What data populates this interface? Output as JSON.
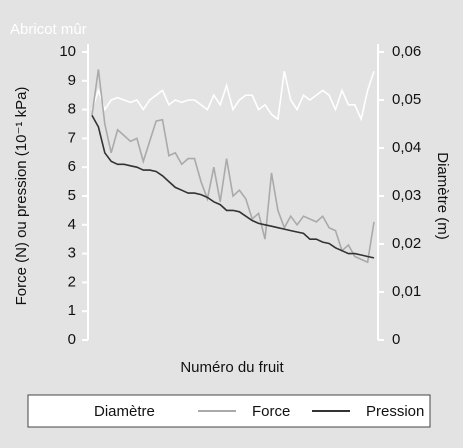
{
  "chart_data": {
    "type": "line",
    "title": "Abricot mûr",
    "xlabel": "Numéro du fruit",
    "ylabel": "Force (N) ou pression (10⁻¹ kPa)",
    "y2label": "Diamètre (m)",
    "ylim": [
      0,
      10
    ],
    "yticks": [
      0,
      1,
      2,
      3,
      4,
      5,
      6,
      7,
      8,
      9,
      10
    ],
    "y2lim": [
      0,
      0.06
    ],
    "y2ticks": [
      0,
      {
        "value": 0.01,
        "label": "0,01"
      },
      {
        "value": 0.02,
        "label": "0,02"
      },
      {
        "value": 0.03,
        "label": "0,03"
      },
      {
        "value": 0.04,
        "label": "0,04"
      },
      {
        "value": 0.05,
        "label": "0,05"
      },
      {
        "value": 0.06,
        "label": "0,06"
      }
    ],
    "legend": "bottom",
    "series": [
      {
        "name": "Diamètre",
        "color": "#ffffff",
        "axis": "y2",
        "values": [
          0.048,
          0.052,
          0.048,
          0.05,
          0.0505,
          0.05,
          0.0495,
          0.05,
          0.048,
          0.05,
          0.051,
          0.052,
          0.049,
          0.05,
          0.0495,
          0.05,
          0.05,
          0.049,
          0.048,
          0.051,
          0.049,
          0.053,
          0.048,
          0.05,
          0.051,
          0.051,
          0.048,
          0.049,
          0.047,
          0.046,
          0.056,
          0.05,
          0.048,
          0.051,
          0.05,
          0.051,
          0.052,
          0.051,
          0.048,
          0.052,
          0.049,
          0.049,
          0.046,
          0.052,
          0.056
        ]
      },
      {
        "name": "Force",
        "color": "#aaaaaa",
        "values": [
          7.8,
          9.4,
          7.5,
          6.5,
          7.3,
          7.1,
          6.9,
          7.0,
          6.2,
          6.9,
          7.6,
          7.65,
          6.4,
          6.5,
          6.1,
          6.3,
          6.3,
          5.5,
          4.9,
          6.0,
          4.8,
          6.3,
          5.0,
          5.2,
          4.9,
          4.2,
          4.4,
          3.5,
          5.8,
          4.5,
          3.9,
          4.3,
          4.0,
          4.3,
          4.2,
          4.1,
          4.3,
          3.9,
          3.8,
          3.1,
          3.3,
          2.9,
          2.8,
          2.7,
          4.1
        ]
      },
      {
        "name": "Pression",
        "color": "#333333",
        "values": [
          7.8,
          7.4,
          6.5,
          6.2,
          6.1,
          6.1,
          6.05,
          6.0,
          5.9,
          5.9,
          5.85,
          5.7,
          5.5,
          5.3,
          5.2,
          5.1,
          5.1,
          5.05,
          4.95,
          4.8,
          4.7,
          4.5,
          4.5,
          4.45,
          4.3,
          4.15,
          4.05,
          4.0,
          3.95,
          3.9,
          3.85,
          3.8,
          3.75,
          3.7,
          3.5,
          3.5,
          3.4,
          3.35,
          3.2,
          3.1,
          3.0,
          3.0,
          2.95,
          2.9,
          2.85
        ]
      }
    ]
  }
}
